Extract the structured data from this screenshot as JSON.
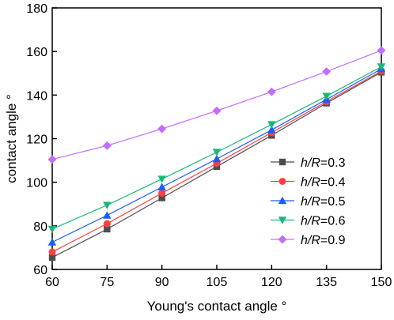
{
  "chart_data": {
    "type": "line",
    "xlabel": "Young's contact angle °",
    "ylabel": "contact angle °",
    "x": [
      60,
      75,
      90,
      105,
      120,
      135,
      150
    ],
    "xticks": [
      60,
      75,
      90,
      105,
      120,
      135,
      150
    ],
    "yticks": [
      60,
      80,
      100,
      120,
      140,
      160,
      180
    ],
    "xlim": [
      60,
      150
    ],
    "ylim": [
      60,
      180
    ],
    "grid": false,
    "legend_position": "right",
    "series": [
      {
        "name_italic": "h/R",
        "name_rest": "=0.3",
        "marker": "square",
        "color": "#4d4d4d",
        "values": [
          65.5,
          78.5,
          92.8,
          107.2,
          121.5,
          136.3,
          150.5
        ]
      },
      {
        "name_italic": "h/R",
        "name_rest": "=0.4",
        "marker": "circle",
        "color": "#ff4040",
        "values": [
          68.0,
          81.0,
          95.0,
          108.7,
          122.8,
          137.0,
          151.0
        ]
      },
      {
        "name_italic": "h/R",
        "name_rest": "=0.5",
        "marker": "triangle-up",
        "color": "#1a5cff",
        "values": [
          72.5,
          84.8,
          97.8,
          110.7,
          124.0,
          138.0,
          152.0
        ]
      },
      {
        "name_italic": "h/R",
        "name_rest": "=0.6",
        "marker": "triangle-down",
        "color": "#19b877",
        "values": [
          78.5,
          89.5,
          101.5,
          113.8,
          126.5,
          139.5,
          153.0
        ]
      },
      {
        "name_italic": "h/R",
        "name_rest": "=0.9",
        "marker": "diamond",
        "color": "#c36cff",
        "values": [
          110.5,
          116.8,
          124.5,
          132.8,
          141.5,
          150.8,
          160.5
        ]
      }
    ]
  }
}
